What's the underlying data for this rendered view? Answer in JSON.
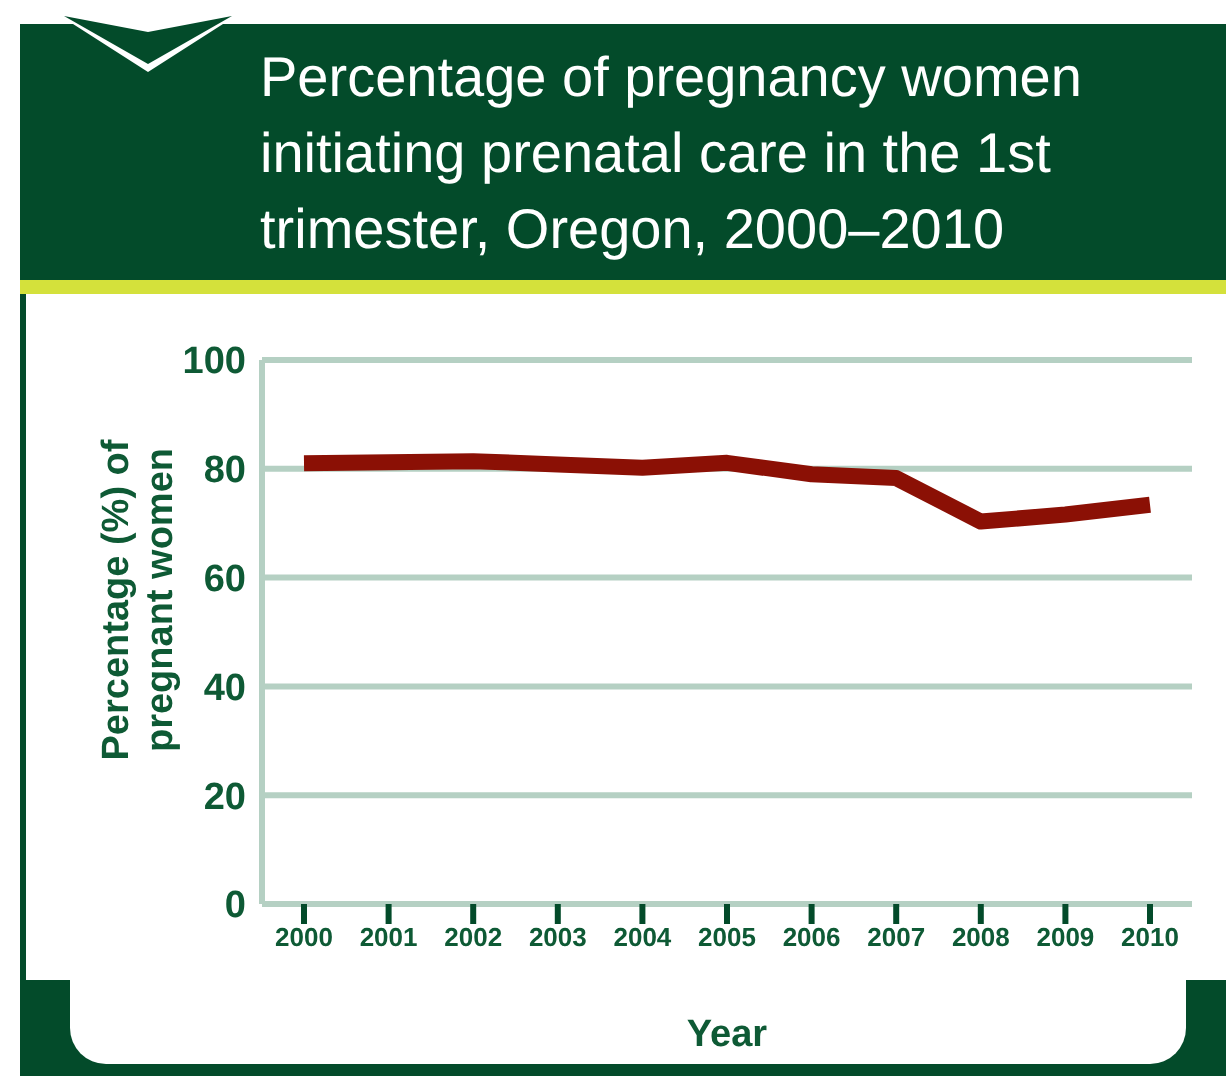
{
  "chart_data": {
    "type": "line",
    "title": "Percentage of pregnancy women initiating prenatal care in the 1st trimester, Oregon, 2000–2010",
    "xlabel": "Year",
    "ylabel": "Percentage (%) of pregnant women",
    "categories": [
      "2000",
      "2001",
      "2002",
      "2003",
      "2004",
      "2005",
      "2006",
      "2007",
      "2008",
      "2009",
      "2010"
    ],
    "series": [
      {
        "color": "#8b1005",
        "values": [
          81.0,
          81.2,
          81.4,
          80.8,
          80.2,
          81.1,
          79.0,
          78.3,
          70.3,
          71.6,
          73.4
        ]
      }
    ],
    "ylim": [
      0,
      100
    ],
    "yticks": [
      0,
      20,
      40,
      60,
      80,
      100
    ],
    "grid": "y",
    "marker": "none",
    "line_style": "solid"
  }
}
